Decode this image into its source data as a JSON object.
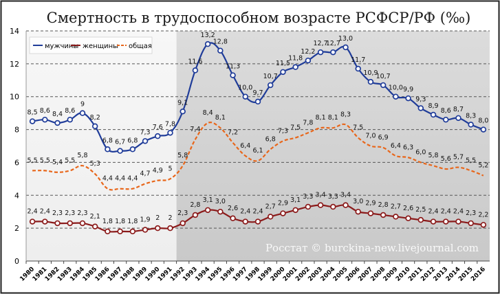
{
  "chart_data": {
    "type": "line",
    "title": "Смертность в трудоспособном возрасте РСФСР/РФ (‰)",
    "watermark": "Росстат © burckina-new.livejournal.com",
    "x": [
      "1980",
      "1981",
      "1982",
      "1983",
      "1984",
      "1985",
      "1986",
      "1987",
      "1988",
      "1989",
      "1990",
      "1991",
      "1992",
      "1993",
      "1994",
      "1995",
      "1996",
      "1997",
      "1998",
      "1999",
      "2000",
      "2001",
      "2002",
      "2003",
      "2004",
      "2005",
      "2006",
      "2007",
      "2008",
      "2009",
      "2010",
      "2011",
      "2012",
      "2013",
      "2014",
      "2015",
      "2016"
    ],
    "ylim": [
      0,
      14
    ],
    "yticks": [
      "0",
      "2",
      "4",
      "6",
      "8",
      "10",
      "12",
      "14"
    ],
    "grid": true,
    "legend_position": "top-left",
    "shaded_from": "1992",
    "series": [
      {
        "name": "мужчины",
        "color": "#1f3c99",
        "style": "solid-markers",
        "values": [
          8.5,
          8.6,
          8.4,
          8.6,
          9.0,
          8.2,
          6.8,
          6.7,
          6.8,
          7.3,
          7.6,
          7.8,
          9.1,
          11.6,
          13.2,
          12.8,
          11.3,
          10.0,
          9.7,
          10.7,
          11.5,
          11.8,
          12.2,
          12.7,
          12.7,
          13.0,
          11.7,
          10.9,
          10.7,
          10.0,
          9.9,
          9.3,
          8.9,
          8.6,
          8.7,
          8.3,
          8.0
        ],
        "labels": [
          "8,5",
          "8,6",
          "8,4",
          "8,6",
          "9",
          "8,2",
          "6,8",
          "6,7",
          "6,8",
          "7,3",
          "7,6",
          "7,8",
          "9,1",
          "11,6",
          "13,2",
          "12,8",
          "11,3",
          "10,0",
          "9,7",
          "10,7",
          "11,5",
          "11,8",
          "12,2",
          "12,7",
          "12,7",
          "13,0",
          "11,7",
          "10,9",
          "10,7",
          "10,0",
          "9,9",
          "9,3",
          "8,9",
          "8,6",
          "8,7",
          "8,3",
          "8,0"
        ]
      },
      {
        "name": "женщины",
        "color": "#8b1a1a",
        "style": "solid-markers",
        "values": [
          2.4,
          2.4,
          2.3,
          2.3,
          2.3,
          2.1,
          1.8,
          1.8,
          1.8,
          1.9,
          2.0,
          2.0,
          2.3,
          2.8,
          3.1,
          3.0,
          2.6,
          2.4,
          2.4,
          2.7,
          2.9,
          3.1,
          3.3,
          3.4,
          3.3,
          3.4,
          3.0,
          2.9,
          2.8,
          2.7,
          2.6,
          2.5,
          2.4,
          2.4,
          2.4,
          2.3,
          2.2
        ],
        "labels": [
          "2,4",
          "2,4",
          "2,3",
          "2,3",
          "2,3",
          "2,1",
          "1,8",
          "1,8",
          "1,8",
          "1,9",
          "2",
          "2",
          "2,3",
          "2,8",
          "3,1",
          "3,0",
          "2,6",
          "2,4",
          "2,4",
          "2,7",
          "2,9",
          "3,1",
          "3,3",
          "3,4",
          "3,3",
          "3,4",
          "3,0",
          "2,9",
          "2,8",
          "2,7",
          "2,6",
          "2,5",
          "2,4",
          "2,4",
          "2,4",
          "2,3",
          "2,2"
        ]
      },
      {
        "name": "общая",
        "color": "#e8661a",
        "style": "dashed",
        "values": [
          5.5,
          5.5,
          5.4,
          5.5,
          5.8,
          5.3,
          4.4,
          4.4,
          4.4,
          4.7,
          4.9,
          5.0,
          5.8,
          7.4,
          8.4,
          8.1,
          7.2,
          6.4,
          6.1,
          6.8,
          7.3,
          7.5,
          7.8,
          8.1,
          8.1,
          8.3,
          7.5,
          7.0,
          6.9,
          6.4,
          6.3,
          6.0,
          5.8,
          5.6,
          5.7,
          5.5,
          5.2
        ],
        "labels": [
          "5,5",
          "5,5",
          "5,4",
          "5,5",
          "5,8",
          "5,3",
          "4,4",
          "4,4",
          "4,4",
          "4,7",
          "4,9",
          "5",
          "5,8",
          "7,4",
          "8,4",
          "8,1",
          "7,2",
          "6,4",
          "6,1",
          "6,8",
          "7,3",
          "7,5",
          "7,8",
          "8,1",
          "8,1",
          "8,3",
          "7,5",
          "7,0",
          "6,9",
          "6,4",
          "6,3",
          "6,0",
          "5,8",
          "5,6",
          "5,7",
          "5,5",
          "5,2"
        ]
      }
    ]
  }
}
